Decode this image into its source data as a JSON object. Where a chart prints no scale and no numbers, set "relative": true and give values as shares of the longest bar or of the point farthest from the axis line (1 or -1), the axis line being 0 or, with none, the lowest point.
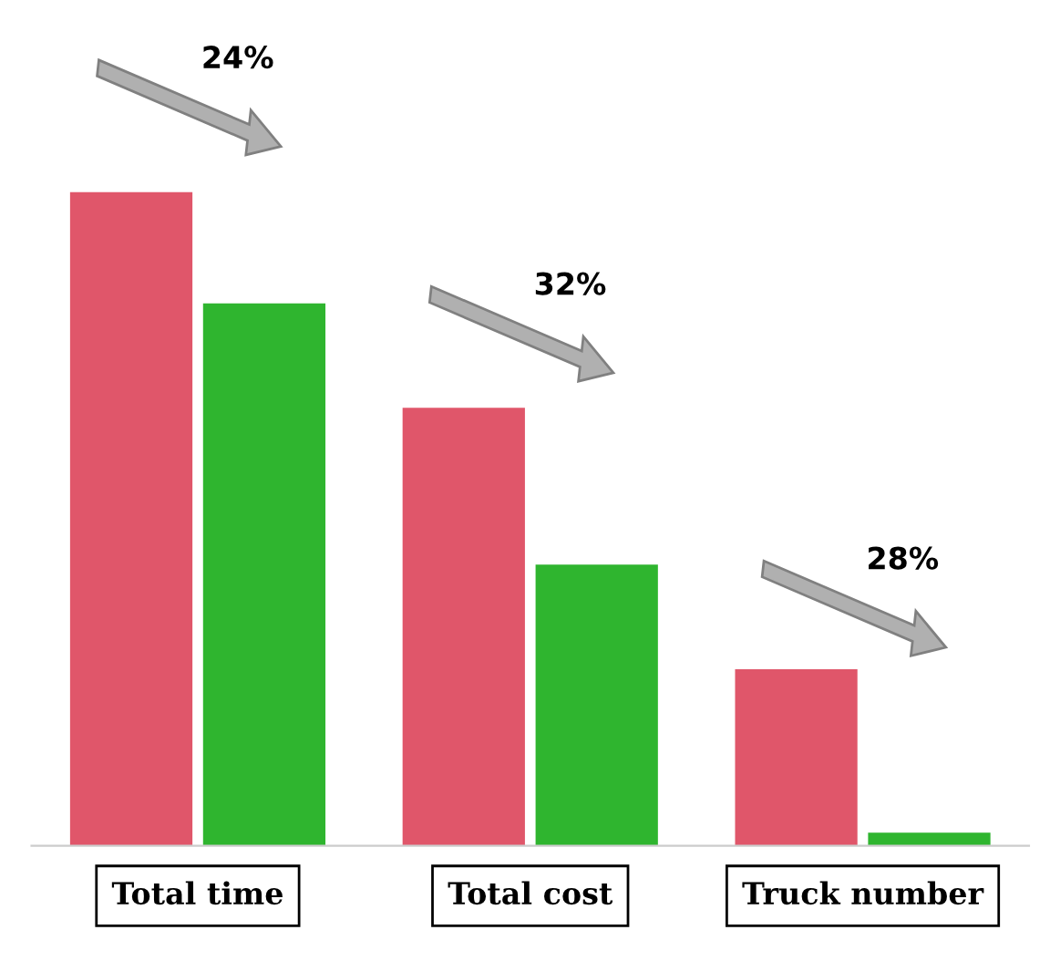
{
  "chart_data": {
    "type": "bar",
    "relative": true,
    "categories": [
      "Total time",
      "Total cost",
      "Truck number"
    ],
    "series": [
      {
        "color": "#e0566a",
        "values": [
          1,
          0.67,
          0.27
        ]
      },
      {
        "color": "#2fb52f",
        "values": [
          0.83,
          0.43,
          0.02
        ]
      }
    ],
    "annotations": [
      "24%",
      "32%",
      "28%"
    ],
    "grid": false,
    "legend": false
  }
}
